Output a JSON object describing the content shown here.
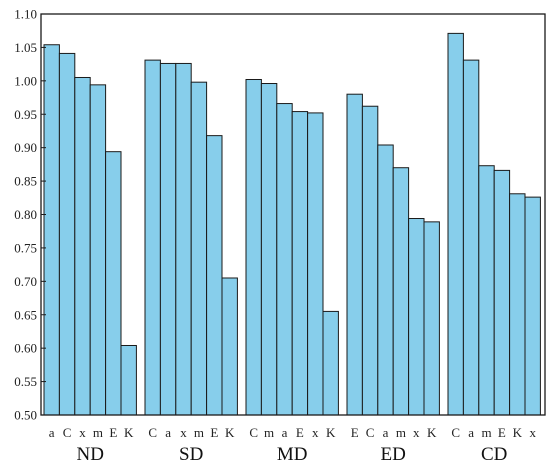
{
  "chart_data": {
    "type": "bar",
    "ylim": [
      0.5,
      1.1
    ],
    "yticks": [
      "0.50",
      "0.55",
      "0.60",
      "0.65",
      "0.70",
      "0.75",
      "0.80",
      "0.85",
      "0.90",
      "0.95",
      "1.00",
      "1.05",
      "1.10"
    ],
    "grid": false,
    "bar_color": "#87CEEB",
    "bar_edge_color": "#1a1a1a",
    "groups": [
      {
        "name": "ND",
        "categories": [
          "a",
          "C",
          "x",
          "m",
          "E",
          "K"
        ],
        "values": [
          1.054,
          1.041,
          1.005,
          0.994,
          0.894,
          0.604
        ]
      },
      {
        "name": "SD",
        "categories": [
          "C",
          "a",
          "x",
          "m",
          "E",
          "K"
        ],
        "values": [
          1.031,
          1.026,
          1.026,
          0.998,
          0.918,
          0.705
        ]
      },
      {
        "name": "MD",
        "categories": [
          "C",
          "m",
          "a",
          "E",
          "x",
          "K"
        ],
        "values": [
          1.002,
          0.996,
          0.966,
          0.954,
          0.952,
          0.655
        ]
      },
      {
        "name": "ED",
        "categories": [
          "E",
          "C",
          "a",
          "m",
          "x",
          "K"
        ],
        "values": [
          0.98,
          0.962,
          0.904,
          0.87,
          0.794,
          0.789
        ]
      },
      {
        "name": "CD",
        "categories": [
          "C",
          "a",
          "m",
          "E",
          "K",
          "x"
        ],
        "values": [
          1.071,
          1.031,
          0.873,
          0.866,
          0.831,
          0.826
        ]
      }
    ]
  }
}
